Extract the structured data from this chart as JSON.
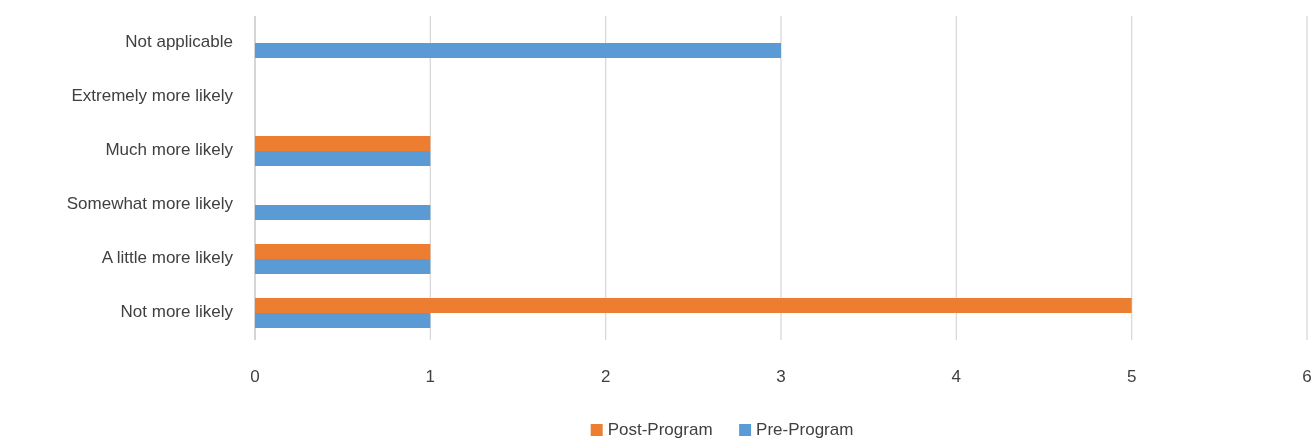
{
  "chart_data": {
    "type": "bar",
    "orientation": "horizontal",
    "categories": [
      "Not applicable",
      "Extremely more likely",
      "Much more likely",
      "Somewhat more likely",
      "A little more likely",
      "Not more likely"
    ],
    "series": [
      {
        "name": "Pre-Program",
        "color": "#5b9bd5",
        "values": [
          3,
          null,
          1,
          1,
          1,
          1
        ]
      },
      {
        "name": "Post-Program",
        "color": "#ed7d31",
        "values": [
          null,
          null,
          1,
          null,
          1,
          5
        ]
      }
    ],
    "xlim": [
      0,
      6
    ],
    "xticks": [
      0,
      1,
      2,
      3,
      4,
      5,
      6
    ],
    "grid": "x",
    "legend": "bottom"
  }
}
